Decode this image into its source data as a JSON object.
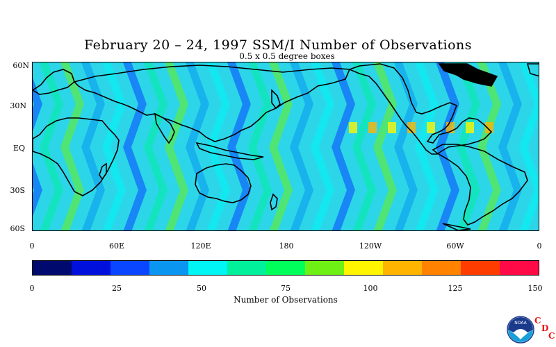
{
  "title": "February 20 – 24, 1997 SSM/I Number of Observations",
  "subtitle": "0.5 x 0.5 degree boxes",
  "map": {
    "lat_labels": [
      "60N",
      "30N",
      "EQ",
      "30S",
      "60S"
    ],
    "lon_labels": [
      "0",
      "60E",
      "120E",
      "180",
      "120W",
      "60W",
      "0"
    ],
    "colors": {
      "ocean_base": "#2cd6e8",
      "coastline": "#000000",
      "land_missing": "#000000"
    }
  },
  "colorbar": {
    "title": "Number of Observations",
    "tick_labels": [
      "0",
      "25",
      "50",
      "75",
      "100",
      "125",
      "150"
    ],
    "colors": [
      "#000a6e",
      "#0010dc",
      "#0a46ff",
      "#0a96f0",
      "#00f5f5",
      "#00f09c",
      "#00ff5a",
      "#6ef014",
      "#fff500",
      "#ffb400",
      "#ff8200",
      "#ff3c00",
      "#ff0a46"
    ]
  },
  "logo": {
    "icon": "noaa-logo-icon",
    "text": "NOAA",
    "org_letters": [
      "C",
      "D",
      "C"
    ]
  }
}
